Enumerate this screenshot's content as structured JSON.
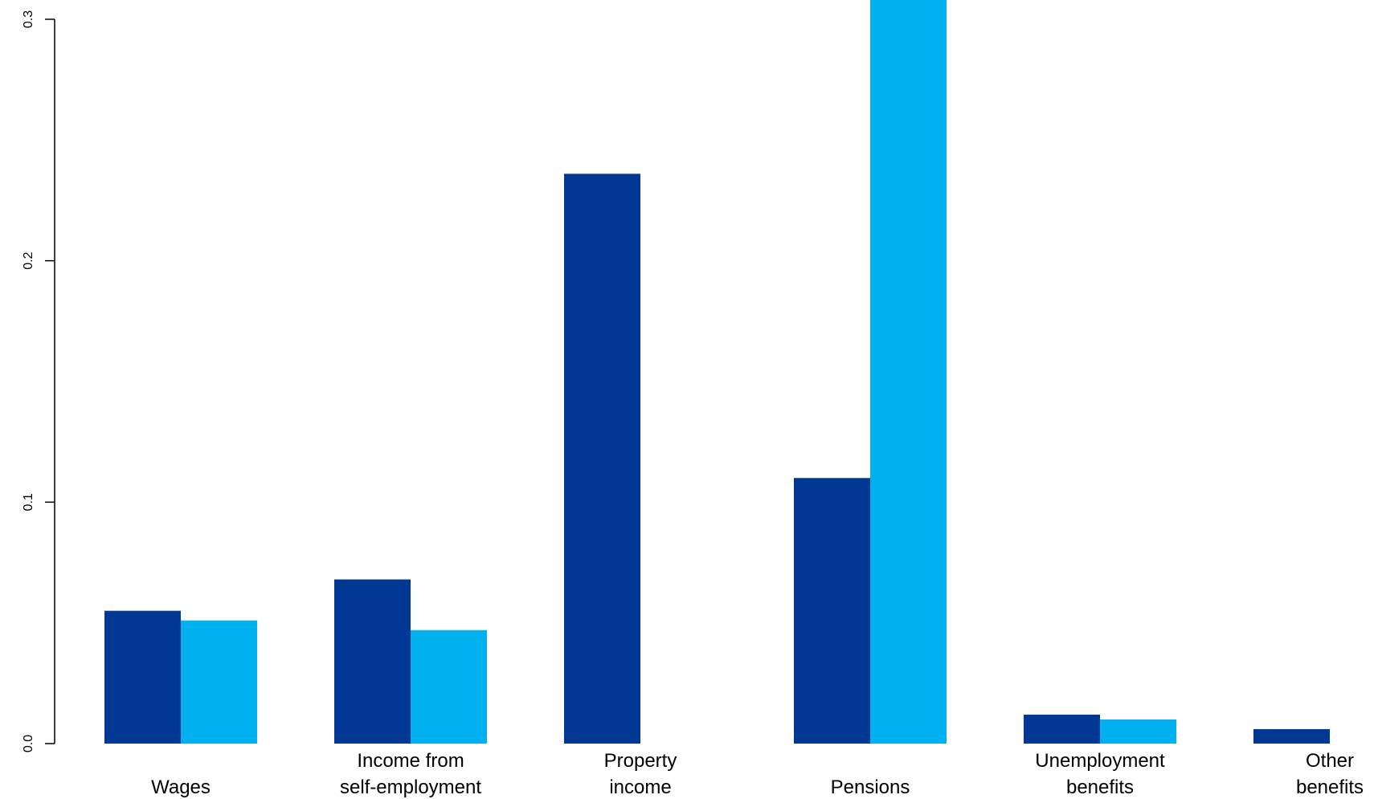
{
  "chart_data": {
    "type": "bar",
    "categories": [
      [
        "Wages"
      ],
      [
        "Income from",
        "self-employment"
      ],
      [
        "Property",
        "income"
      ],
      [
        "Pensions"
      ],
      [
        "Unemployment",
        "benefits"
      ],
      [
        "Other",
        "benefits"
      ]
    ],
    "series": [
      {
        "color": "#003893",
        "values": [
          0.055,
          0.068,
          0.236,
          0.11,
          0.012,
          0.006
        ]
      },
      {
        "color": "#00b0ef",
        "values": [
          0.051,
          0.047,
          0,
          0.313,
          0.01,
          0
        ]
      }
    ],
    "ylim": [
      0,
      0.3
    ],
    "yticks": [
      0.0,
      0.1,
      0.2,
      0.3
    ],
    "ytick_labels": [
      "0.0",
      "0.1",
      "0.2",
      "0.3"
    ],
    "title": "",
    "xlabel": "",
    "ylabel": "",
    "grid": false,
    "legend": "none"
  }
}
